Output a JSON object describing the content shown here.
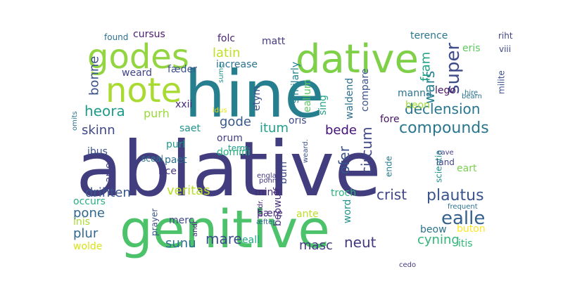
{
  "word_cloud": {
    "words": [
      {
        "text": "ablative",
        "color": "#423d7e"
      },
      {
        "text": "hine",
        "color": "#267f8e"
      },
      {
        "text": "genitive",
        "color": "#4cc36a"
      },
      {
        "text": "dative",
        "color": "#7ed049"
      },
      {
        "text": "godes",
        "color": "#93d541"
      },
      {
        "text": "note",
        "color": "#a8da31"
      },
      {
        "text": "compounds",
        "color": "#2a768e"
      },
      {
        "text": "declension",
        "color": "#2a768e"
      },
      {
        "text": "heora",
        "color": "#1f9c89"
      },
      {
        "text": "plautus",
        "color": "#3a548c"
      },
      {
        "text": "super",
        "color": "#3d4b89"
      },
      {
        "text": "ealle",
        "color": "#34618d"
      },
      {
        "text": "crist",
        "color": "#404688"
      },
      {
        "text": "neut",
        "color": "#453882"
      },
      {
        "text": "masc",
        "color": "#453882"
      },
      {
        "text": "cyning",
        "color": "#32b67a"
      },
      {
        "text": "wars",
        "color": "#27808e"
      },
      {
        "text": "ofer",
        "color": "#3b518b"
      },
      {
        "text": "bonne",
        "color": "#3b518b"
      },
      {
        "text": "circum",
        "color": "#404688"
      },
      {
        "text": "drihten",
        "color": "#3a548c"
      },
      {
        "text": "veritas",
        "color": "#b8de29"
      },
      {
        "text": "pone",
        "color": "#31688e"
      },
      {
        "text": "plur",
        "color": "#31688e"
      },
      {
        "text": "sunu",
        "color": "#2c718e"
      },
      {
        "text": "mare",
        "color": "#3d4d8a"
      },
      {
        "text": "skinn",
        "color": "#3f4889"
      },
      {
        "text": "purh",
        "color": "#9bd93c"
      },
      {
        "text": "itum",
        "color": "#1f9e89"
      },
      {
        "text": "gode",
        "color": "#38598c"
      },
      {
        "text": "bede",
        "color": "#440f76"
      },
      {
        "text": "fram",
        "color": "#20a386"
      },
      {
        "text": "latin",
        "color": "#c0df25"
      },
      {
        "text": "cursus",
        "color": "#481c6e"
      },
      {
        "text": "folc",
        "color": "#482576"
      },
      {
        "text": "matt",
        "color": "#443a83"
      },
      {
        "text": "eris",
        "color": "#5ec962"
      },
      {
        "text": "terence",
        "color": "#2a778e"
      },
      {
        "text": "increase",
        "color": "#2c718e"
      },
      {
        "text": "weard",
        "color": "#414487"
      },
      {
        "text": "fæder",
        "color": "#3b528b"
      },
      {
        "text": "lego",
        "color": "#471063"
      },
      {
        "text": "beon",
        "color": "#a2da37"
      },
      {
        "text": "manna",
        "color": "#2c728e"
      },
      {
        "text": "fore",
        "color": "#471365"
      },
      {
        "text": "similarly",
        "color": "#25848e"
      },
      {
        "text": "etym",
        "color": "#3b528b"
      },
      {
        "text": "sing",
        "color": "#20a486"
      },
      {
        "text": "compare",
        "color": "#3a548c"
      },
      {
        "text": "waldend",
        "color": "#2d708e"
      },
      {
        "text": "eallum",
        "color": "#5cc863"
      },
      {
        "text": "xxii",
        "color": "#482979"
      },
      {
        "text": "saet",
        "color": "#21918c"
      },
      {
        "text": "oris",
        "color": "#3e4989"
      },
      {
        "text": "orum",
        "color": "#433e85"
      },
      {
        "text": "term",
        "color": "#1f9f88"
      },
      {
        "text": "purl",
        "color": "#1f9a8a"
      },
      {
        "text": "paet",
        "color": "#2d718e"
      },
      {
        "text": "domini",
        "color": "#29af7f"
      },
      {
        "text": "ibus",
        "color": "#3b528b"
      },
      {
        "text": "rice",
        "color": "#453781"
      },
      {
        "text": "artes",
        "color": "#433e85"
      },
      {
        "text": "beowulf",
        "color": "#46327e"
      },
      {
        "text": "burh",
        "color": "#3e4a89"
      },
      {
        "text": "mine",
        "color": "#472a7a"
      },
      {
        "text": "troch",
        "color": "#2db27d"
      },
      {
        "text": "ende",
        "color": "#287c8e"
      },
      {
        "text": "eart",
        "color": "#7ad151"
      },
      {
        "text": "scientia",
        "color": "#21918c"
      },
      {
        "text": "land",
        "color": "#414487"
      },
      {
        "text": "cave",
        "color": "#433e85"
      },
      {
        "text": "frequent",
        "color": "#2c728e"
      },
      {
        "text": "buton",
        "color": "#fde725"
      },
      {
        "text": "beow",
        "color": "#2c728e"
      },
      {
        "text": "itis",
        "color": "#35b779"
      },
      {
        "text": "cedo",
        "color": "#443983"
      },
      {
        "text": "ante",
        "color": "#bddf26"
      },
      {
        "text": "þære",
        "color": "#472d7b"
      },
      {
        "text": "word",
        "color": "#21918c"
      },
      {
        "text": "eall",
        "color": "#22a785"
      },
      {
        "text": "merc",
        "color": "#3f4788"
      },
      {
        "text": "occurs",
        "color": "#29af7f"
      },
      {
        "text": "inis",
        "color": "#aadc32"
      },
      {
        "text": "wolde",
        "color": "#d8e219"
      },
      {
        "text": "prayer",
        "color": "#3b528b"
      },
      {
        "text": "andr",
        "color": "#482677"
      },
      {
        "text": "æfter",
        "color": "#31688e"
      },
      {
        "text": "found",
        "color": "#2d708e"
      },
      {
        "text": "andr.",
        "color": "#482677"
      },
      {
        "text": "hire",
        "color": "#2c728e"
      },
      {
        "text": "riht",
        "color": "#404688"
      },
      {
        "text": "viii",
        "color": "#3e4989"
      },
      {
        "text": "milite",
        "color": "#3b528b"
      },
      {
        "text": "bearn",
        "color": "#2d718e"
      },
      {
        "text": "sume",
        "color": "#21918c"
      },
      {
        "text": "idus",
        "color": "#e2e418"
      },
      {
        "text": "omits",
        "color": "#2c728e"
      },
      {
        "text": "sceal",
        "color": "#2a788e"
      },
      {
        "text": "weard.",
        "color": "#3b528b"
      },
      {
        "text": "engla",
        "color": "#443a83"
      },
      {
        "text": "ponne",
        "color": "#443a83"
      }
    ]
  }
}
